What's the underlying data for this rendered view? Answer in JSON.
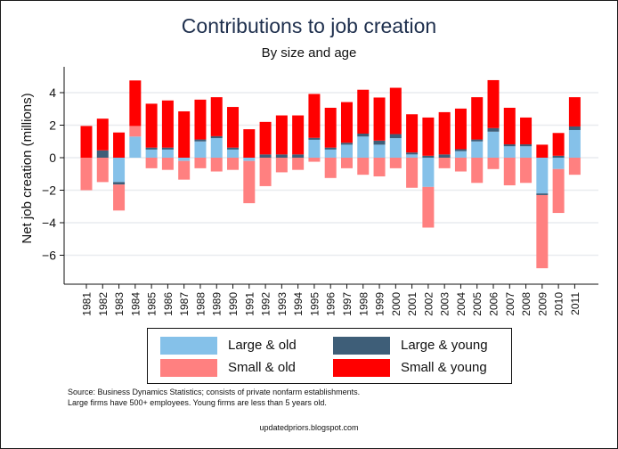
{
  "chart_data": {
    "type": "bar",
    "stacked": true,
    "title": "Contributions to job creation",
    "subtitle": "By size and age",
    "xlabel": "",
    "ylabel": "Net job creation (millions)",
    "ylim": [
      -7.5,
      5.8
    ],
    "yticks": [
      4,
      2,
      0,
      -2,
      -4,
      -6
    ],
    "grid": true,
    "legend_position": "bottom",
    "categories": [
      "1981",
      "1982",
      "1983",
      "1984",
      "1985",
      "1986",
      "1987",
      "1988",
      "1989",
      "1990",
      "1991",
      "1992",
      "1993",
      "1994",
      "1995",
      "1996",
      "1997",
      "1998",
      "1999",
      "2000",
      "2001",
      "2002",
      "2003",
      "2004",
      "2005",
      "2006",
      "2007",
      "2008",
      "2009",
      "2010",
      "2011"
    ],
    "positive_stack": [
      {
        "name": "Large & old",
        "color": "#85c1e9",
        "values": [
          0,
          0,
          0,
          1.3,
          0.5,
          0.5,
          0,
          1,
          1.2,
          0.5,
          0,
          0,
          0,
          0,
          1.1,
          0.5,
          0.8,
          1.3,
          0.8,
          1.2,
          0.2,
          0,
          0,
          0.4,
          1,
          1.6,
          0.7,
          0.7,
          0,
          0,
          1.7
        ]
      },
      {
        "name": "Large & young",
        "color": "#3e5e78",
        "values": [
          0,
          0.45,
          0,
          0,
          0.12,
          0.12,
          0,
          0.12,
          0.12,
          0.12,
          0,
          0.2,
          0.2,
          0.2,
          0.12,
          0.12,
          0.12,
          0.18,
          0.25,
          0.25,
          0.12,
          0.12,
          0.2,
          0.12,
          0.12,
          0.22,
          0.12,
          0.12,
          0,
          0.12,
          0.22
        ]
      },
      {
        "name": "Small & old",
        "color": "#ff8080",
        "values": [
          0,
          0,
          0,
          0.65,
          0,
          0,
          0,
          0,
          0,
          0,
          0,
          0,
          0,
          0,
          0,
          0,
          0,
          0,
          0,
          0,
          0,
          0,
          0,
          0,
          0,
          0,
          0,
          0,
          0,
          0,
          0
        ]
      },
      {
        "name": "Small & young",
        "color": "#ff0000",
        "values": [
          1.95,
          1.95,
          1.55,
          2.8,
          2.7,
          2.9,
          2.85,
          2.45,
          2.4,
          2.5,
          1.75,
          2,
          2.4,
          2.4,
          2.7,
          2.45,
          2.5,
          2.7,
          2.65,
          2.85,
          2.35,
          2.35,
          2.6,
          2.5,
          2.6,
          2.95,
          2.25,
          1.65,
          0.8,
          1.4,
          1.8
        ]
      }
    ],
    "negative_stack": [
      {
        "name": "Large & old",
        "color": "#85c1e9",
        "values": [
          0,
          0,
          -1.5,
          0,
          0,
          0,
          -0.2,
          0,
          0,
          0,
          -0.2,
          0,
          0,
          0,
          0,
          0,
          0,
          0,
          0,
          0,
          0,
          -1.8,
          0,
          0,
          0,
          0,
          0,
          0,
          -2.2,
          -0.7,
          0
        ]
      },
      {
        "name": "Large & young",
        "color": "#3e5e78",
        "values": [
          0,
          0,
          -0.15,
          0,
          0,
          0,
          0,
          0,
          0,
          0,
          0,
          0,
          0,
          0,
          0,
          0,
          0,
          0,
          0,
          0,
          0,
          0,
          0,
          0,
          0,
          0,
          0,
          0,
          -0.1,
          0,
          0
        ]
      },
      {
        "name": "Small & old",
        "color": "#ff8080",
        "values": [
          -2,
          -1.5,
          -1.6,
          0,
          -0.65,
          -0.75,
          -1.15,
          -0.65,
          -0.85,
          -0.75,
          -2.6,
          -1.75,
          -0.9,
          -0.75,
          -0.25,
          -1.25,
          -0.65,
          -1.05,
          -1.15,
          -0.65,
          -1.85,
          -2.5,
          -0.65,
          -0.85,
          -1.55,
          -0.7,
          -1.7,
          -1.55,
          -4.5,
          -2.7,
          -1.05
        ]
      }
    ],
    "legend": [
      "Large & old",
      "Large & young",
      "Small & old",
      "Small & young"
    ]
  },
  "notes": {
    "source_line1": "Source: Business Dynamics Statistics; consists of private nonfarm establishments.",
    "source_line2": "Large firms have 500+ employees. Young firms are less than 5 years old.",
    "credit": "updatedpriors.blogspot.com"
  }
}
